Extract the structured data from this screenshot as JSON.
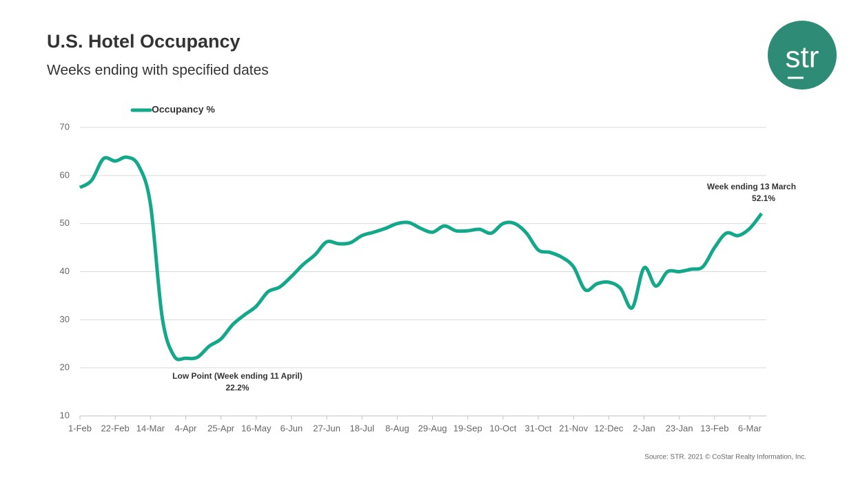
{
  "title": "U.S. Hotel Occupancy",
  "subtitle": "Weeks ending with specified dates",
  "logo": "str",
  "source": "Source: STR. 2021 © CoStar Realty Information, Inc.",
  "chart_data": {
    "type": "line",
    "categories": [
      "1-Feb",
      null,
      null,
      "22-Feb",
      null,
      null,
      "14-Mar",
      null,
      null,
      "4-Apr",
      null,
      null,
      "25-Apr",
      null,
      null,
      "16-May",
      null,
      null,
      "6-Jun",
      null,
      null,
      "27-Jun",
      null,
      null,
      "18-Jul",
      null,
      null,
      "8-Aug",
      null,
      null,
      "29-Aug",
      null,
      null,
      "19-Sep",
      null,
      null,
      "10-Oct",
      null,
      null,
      "31-Oct",
      null,
      null,
      "21-Nov",
      null,
      null,
      "12-Dec",
      null,
      null,
      "2-Jan",
      null,
      null,
      "23-Jan",
      null,
      null,
      "13-Feb",
      null,
      null,
      "6-Mar",
      null
    ],
    "series": [
      {
        "name": "Occupancy %",
        "color": "#14a88b",
        "values": [
          57.5,
          59,
          63.5,
          63,
          63.8,
          62,
          54,
          30.5,
          22.5,
          22,
          22.2,
          24.5,
          26,
          29,
          31,
          32.8,
          35.8,
          36.8,
          39,
          41.5,
          43.5,
          46.2,
          45.8,
          46,
          47.5,
          48.2,
          49,
          50,
          50.2,
          49,
          48.2,
          49.5,
          48.5,
          48.5,
          48.8,
          48,
          50,
          50,
          48,
          44.5,
          44,
          43,
          41,
          36.2,
          37.5,
          37.8,
          36.5,
          32.5,
          40.8,
          37,
          40,
          40,
          40.5,
          41,
          45,
          48,
          47.5,
          49,
          52.1
        ],
        "value_labels": [
          null,
          null,
          null,
          null,
          null,
          null,
          null,
          null,
          null,
          null,
          "22.2%",
          null,
          null,
          null,
          null,
          null,
          null,
          null,
          null,
          null,
          null,
          null,
          null,
          null,
          null,
          null,
          null,
          null,
          null,
          null,
          null,
          null,
          null,
          null,
          null,
          null,
          null,
          null,
          null,
          null,
          null,
          null,
          null,
          null,
          null,
          null,
          null,
          null,
          null,
          null,
          null,
          null,
          null,
          null,
          null,
          null,
          null,
          null,
          "52.1%"
        ]
      }
    ],
    "annotations": [
      "Low Point (Week ending 11 April)",
      "Week ending 13 March"
    ],
    "ylim": [
      10,
      70
    ],
    "yticks": [
      10,
      20,
      30,
      40,
      50,
      60,
      70
    ],
    "grid": true,
    "legend": "top-left"
  }
}
